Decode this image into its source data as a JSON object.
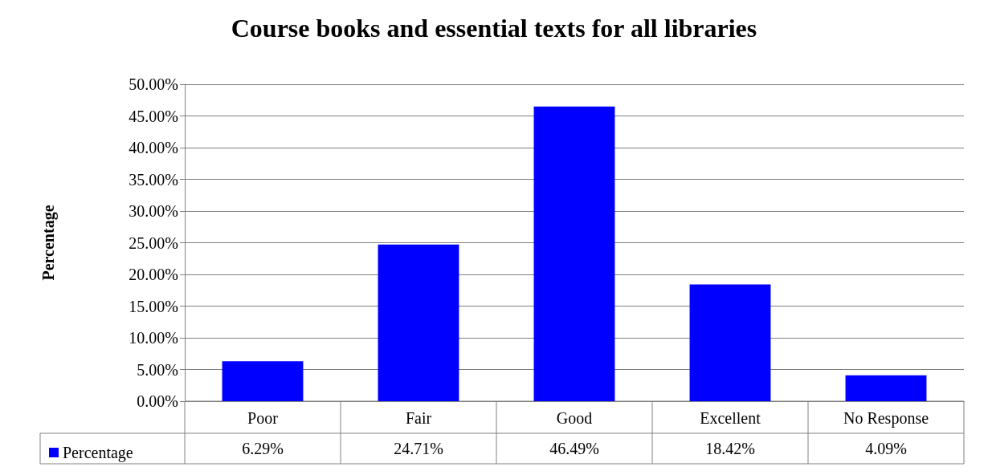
{
  "chart_data": {
    "type": "bar",
    "title": "Course books and essential texts for all libraries",
    "ylabel": "Percentage",
    "categories": [
      "Poor",
      "Fair",
      "Good",
      "Excellent",
      "No Response"
    ],
    "series": [
      {
        "name": "Percentage",
        "color": "#0000ff",
        "values": [
          6.29,
          24.71,
          46.49,
          18.42,
          4.09
        ],
        "value_labels": [
          "6.29%",
          "24.71%",
          "46.49%",
          "18.42%",
          "4.09%"
        ]
      }
    ],
    "ylim": [
      0,
      50
    ],
    "yticks": [
      {
        "value": 0,
        "label": "0.00%"
      },
      {
        "value": 5,
        "label": "5.00%"
      },
      {
        "value": 10,
        "label": "10.00%"
      },
      {
        "value": 15,
        "label": "15.00%"
      },
      {
        "value": 20,
        "label": "20.00%"
      },
      {
        "value": 25,
        "label": "25.00%"
      },
      {
        "value": 30,
        "label": "30.00%"
      },
      {
        "value": 35,
        "label": "35.00%"
      },
      {
        "value": 40,
        "label": "40.00%"
      },
      {
        "value": 45,
        "label": "45.00%"
      },
      {
        "value": 50,
        "label": "50.00%"
      }
    ],
    "grid": "y",
    "legend": "bottom left"
  }
}
